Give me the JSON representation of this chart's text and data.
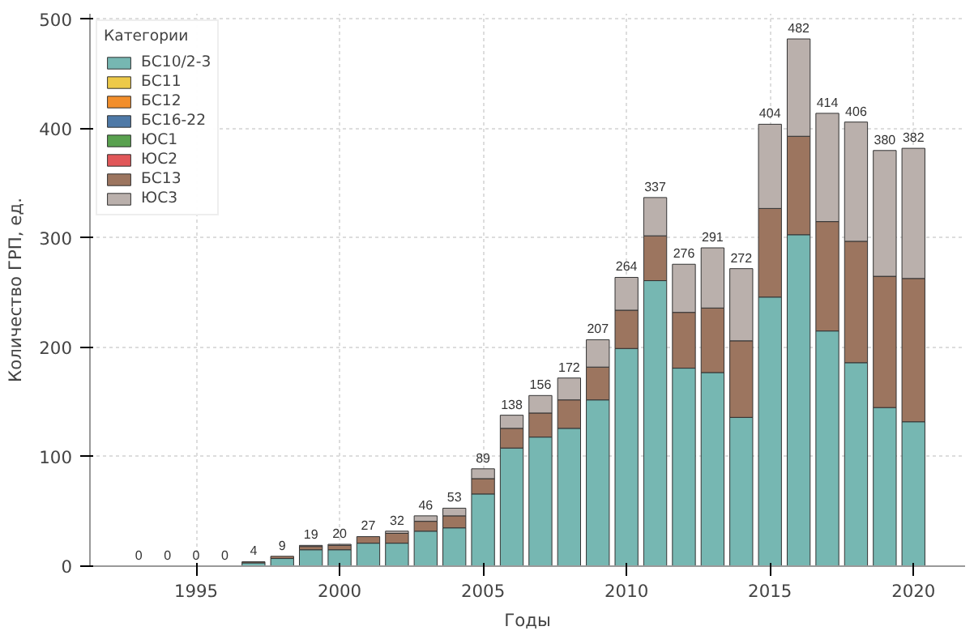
{
  "chart_data": {
    "type": "bar",
    "stacked": true,
    "xlabel": "Годы",
    "ylabel": "Количество ГРП, ед.",
    "legend_title": "Категории",
    "legend": "top left",
    "grid": true,
    "x": [
      1993,
      1994,
      1995,
      1996,
      1997,
      1998,
      1999,
      2000,
      2001,
      2002,
      2003,
      2004,
      2005,
      2006,
      2007,
      2008,
      2009,
      2010,
      2011,
      2012,
      2013,
      2014,
      2015,
      2016,
      2017,
      2018,
      2019,
      2020
    ],
    "xlim": [
      1991.3,
      2021.8
    ],
    "xticks": [
      1995,
      2000,
      2005,
      2010,
      2015,
      2020
    ],
    "ylim": [
      0,
      505
    ],
    "yticks": [
      0,
      100,
      200,
      300,
      400,
      500
    ],
    "series": [
      {
        "name": "БС10/2-3",
        "color": "#76b7b2",
        "values": [
          0,
          0,
          0,
          0,
          3,
          7,
          15,
          15,
          21,
          21,
          32,
          35,
          66,
          108,
          118,
          126,
          152,
          199,
          261,
          181,
          177,
          136,
          246,
          303,
          215,
          186,
          145,
          132
        ]
      },
      {
        "name": "БС11",
        "color": "#edc948",
        "values": [
          0,
          0,
          0,
          0,
          0,
          0,
          0,
          0,
          0,
          0,
          0,
          0,
          0,
          0,
          0,
          0,
          0,
          0,
          0,
          0,
          0,
          0,
          0,
          0,
          0,
          0,
          0,
          0
        ]
      },
      {
        "name": "БС12",
        "color": "#f28e2b",
        "values": [
          0,
          0,
          0,
          0,
          0,
          0,
          0,
          0,
          0,
          0,
          0,
          0,
          0,
          0,
          0,
          0,
          0,
          0,
          0,
          0,
          0,
          0,
          0,
          0,
          0,
          0,
          0,
          0
        ]
      },
      {
        "name": "БС16-22",
        "color": "#4e79a7",
        "values": [
          0,
          0,
          0,
          0,
          0,
          0,
          0,
          0,
          0,
          0,
          0,
          0,
          0,
          0,
          0,
          0,
          0,
          0,
          0,
          0,
          0,
          0,
          0,
          0,
          0,
          0,
          0,
          0
        ]
      },
      {
        "name": "ЮС1",
        "color": "#59a14f",
        "values": [
          0,
          0,
          0,
          0,
          0,
          0,
          0,
          0,
          0,
          0,
          0,
          0,
          0,
          0,
          0,
          0,
          0,
          0,
          0,
          0,
          0,
          0,
          0,
          0,
          0,
          0,
          0,
          0
        ]
      },
      {
        "name": "ЮС2",
        "color": "#e15759",
        "values": [
          0,
          0,
          0,
          0,
          0,
          0,
          0,
          0,
          0,
          0,
          0,
          0,
          0,
          0,
          0,
          0,
          0,
          0,
          0,
          0,
          0,
          0,
          0,
          0,
          0,
          0,
          0,
          0
        ]
      },
      {
        "name": "БС13",
        "color": "#9c755f",
        "values": [
          0,
          0,
          0,
          0,
          1,
          2,
          3,
          4,
          6,
          9,
          9,
          11,
          14,
          18,
          22,
          26,
          30,
          35,
          41,
          51,
          59,
          70,
          81,
          90,
          100,
          111,
          120,
          131
        ]
      },
      {
        "name": "ЮС3",
        "color": "#bab0ac",
        "values": [
          0,
          0,
          0,
          0,
          0,
          0,
          1,
          1,
          0,
          2,
          5,
          7,
          9,
          12,
          16,
          20,
          25,
          30,
          35,
          44,
          55,
          66,
          77,
          89,
          99,
          109,
          115,
          119
        ]
      }
    ],
    "totals": [
      "0",
      "0",
      "0",
      "0",
      "4",
      "9",
      "19",
      "20",
      "27",
      "32",
      "46",
      "53",
      "89",
      "138",
      "156",
      "172",
      "207",
      "264",
      "337",
      "276",
      "291",
      "272",
      "404",
      "482",
      "414",
      "406",
      "380",
      "382"
    ]
  }
}
